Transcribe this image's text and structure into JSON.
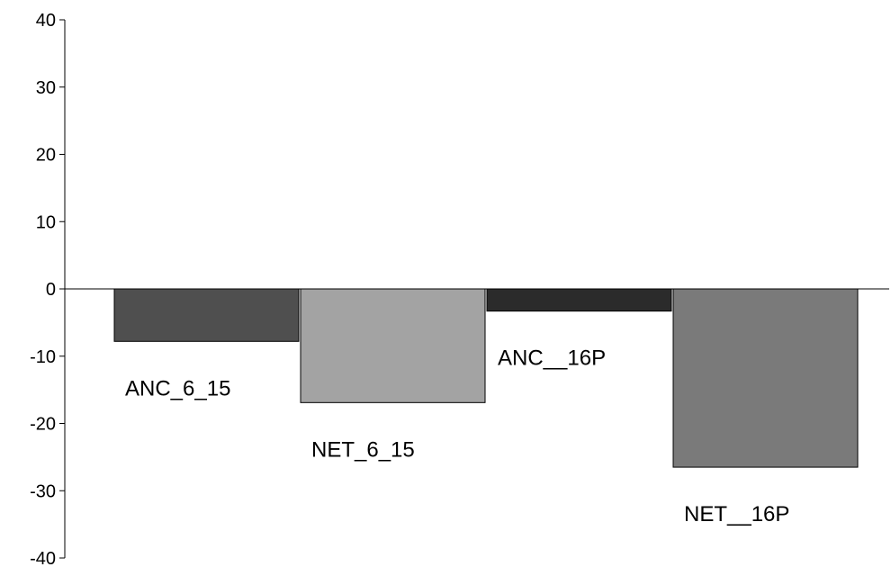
{
  "chart_data": {
    "type": "bar",
    "title": "",
    "xlabel": "",
    "ylabel": "",
    "ylim": [
      -40,
      40
    ],
    "yticks": [
      40,
      30,
      20,
      10,
      0,
      -10,
      -20,
      -30,
      -40
    ],
    "grid": false,
    "legend": "none",
    "categories": [
      "ANC_6_15",
      "NET_6_15",
      "ANC__16P",
      "NET__16P"
    ],
    "values": [
      -7.8,
      -16.9,
      -3.3,
      -26.5
    ],
    "colors": [
      "#4f4f4f",
      "#a3a3a3",
      "#2b2b2b",
      "#7a7a7a"
    ]
  }
}
